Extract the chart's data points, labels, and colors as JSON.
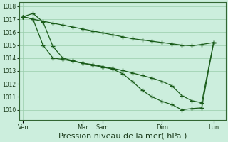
{
  "background_color": "#cceedd",
  "grid_color": "#99ccaa",
  "line_color": "#1a5c1a",
  "marker_color": "#1a5c1a",
  "xlabel": "Pression niveau de la mer( hPa )",
  "xlabel_fontsize": 8,
  "ylim": [
    1009.2,
    1018.3
  ],
  "xlim": [
    -0.1,
    5.1
  ],
  "yticks": [
    1010,
    1011,
    1012,
    1013,
    1014,
    1015,
    1016,
    1017,
    1018
  ],
  "xtick_positions": [
    0.0,
    1.5,
    2.0,
    3.5,
    4.8
  ],
  "xtick_labels": [
    "Ven",
    "Mar",
    "Sam",
    "Dim",
    "Lun"
  ],
  "line1_x": [
    0.0,
    0.25,
    0.5,
    0.75,
    1.0,
    1.25,
    1.5,
    1.75,
    2.0,
    2.25,
    2.5,
    2.75,
    3.0,
    3.25,
    3.5,
    3.75,
    4.0,
    4.25,
    4.5,
    4.8
  ],
  "line1_y": [
    1017.2,
    1017.0,
    1016.85,
    1016.7,
    1016.55,
    1016.4,
    1016.25,
    1016.1,
    1015.95,
    1015.8,
    1015.65,
    1015.5,
    1015.4,
    1015.3,
    1015.2,
    1015.1,
    1015.0,
    1014.95,
    1015.05,
    1015.2
  ],
  "line2_x": [
    0.0,
    0.25,
    0.5,
    0.75,
    1.0,
    1.25,
    1.5,
    1.75,
    2.0,
    2.25,
    2.5,
    2.75,
    3.0,
    3.25,
    3.5,
    3.75,
    4.0,
    4.25,
    4.5,
    4.8
  ],
  "line2_y": [
    1017.2,
    1017.0,
    1015.0,
    1014.0,
    1013.9,
    1013.75,
    1013.6,
    1013.5,
    1013.35,
    1013.2,
    1013.05,
    1012.85,
    1012.65,
    1012.45,
    1012.2,
    1011.85,
    1011.1,
    1010.7,
    1010.55,
    1015.2
  ],
  "line3_x": [
    0.0,
    0.25,
    0.5,
    0.75,
    1.0,
    1.25,
    1.5,
    1.75,
    2.0,
    2.25,
    2.5,
    2.75,
    3.0,
    3.25,
    3.5,
    3.75,
    4.0,
    4.25,
    4.5,
    4.8
  ],
  "line3_y": [
    1017.2,
    1017.45,
    1016.8,
    1014.9,
    1014.0,
    1013.8,
    1013.6,
    1013.45,
    1013.3,
    1013.15,
    1012.8,
    1012.2,
    1011.5,
    1011.0,
    1010.65,
    1010.4,
    1010.0,
    1010.1,
    1010.15,
    1015.2
  ],
  "vlines": [
    1.5,
    2.0,
    3.5,
    4.8
  ]
}
